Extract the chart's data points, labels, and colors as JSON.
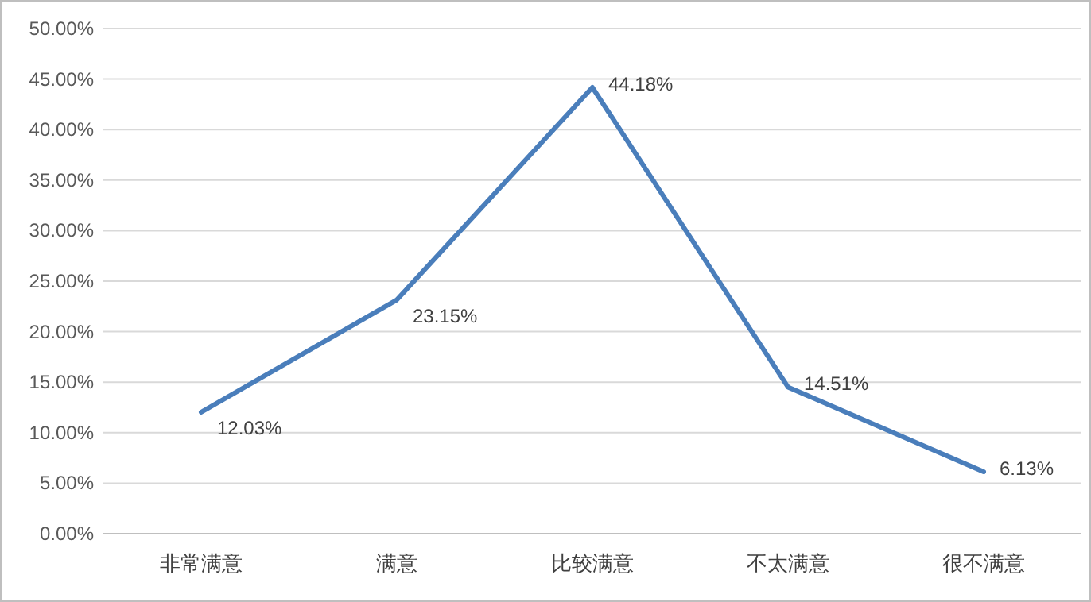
{
  "chart_data": {
    "type": "line",
    "categories": [
      "非常满意",
      "满意",
      "比较满意",
      "不太满意",
      "很不满意"
    ],
    "series": [
      {
        "color": "#4a7ebb",
        "values": [
          12.03,
          23.15,
          44.18,
          14.51,
          6.13
        ],
        "value_labels": [
          "12.03%",
          "23.15%",
          "44.18%",
          "14.51%",
          "6.13%"
        ]
      }
    ],
    "ylim": [
      0,
      50
    ],
    "yticks": [
      {
        "value": 0,
        "label": "0.00%"
      },
      {
        "value": 5,
        "label": "5.00%"
      },
      {
        "value": 10,
        "label": "10.00%"
      },
      {
        "value": 15,
        "label": "15.00%"
      },
      {
        "value": 20,
        "label": "20.00%"
      },
      {
        "value": 25,
        "label": "25.00%"
      },
      {
        "value": 30,
        "label": "30.00%"
      },
      {
        "value": 35,
        "label": "35.00%"
      },
      {
        "value": 40,
        "label": "40.00%"
      },
      {
        "value": 45,
        "label": "45.00%"
      },
      {
        "value": 50,
        "label": "50.00%"
      }
    ],
    "grid": "y",
    "marker": "none",
    "line_style": "solid"
  }
}
